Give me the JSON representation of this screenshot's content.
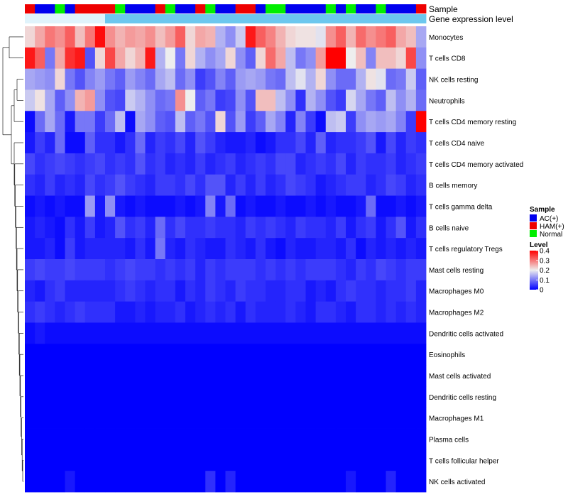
{
  "chart_data": {
    "type": "heatmap",
    "title": "",
    "annotation_tracks": [
      {
        "name": "Sample",
        "label": "Sample"
      },
      {
        "name": "Gene expression level",
        "label": "Gene expression level"
      }
    ],
    "sample_groups": [
      "H",
      "A",
      "A",
      "N",
      "A",
      "H",
      "H",
      "H",
      "H",
      "N",
      "A",
      "A",
      "A",
      "H",
      "N",
      "A",
      "A",
      "H",
      "N",
      "A",
      "A",
      "H",
      "H",
      "A",
      "N",
      "N",
      "A",
      "A",
      "A",
      "A",
      "N",
      "A",
      "N",
      "A",
      "A",
      "N",
      "A",
      "A",
      "A",
      "H"
    ],
    "gene_expression_level": [
      "low",
      "low",
      "low",
      "low",
      "low",
      "low",
      "low",
      "low",
      "high",
      "high",
      "high",
      "high",
      "high",
      "high",
      "high",
      "high",
      "high",
      "high",
      "high",
      "high",
      "high",
      "high",
      "high",
      "high",
      "high",
      "high",
      "high",
      "high",
      "high",
      "high",
      "high",
      "high",
      "high",
      "high",
      "high",
      "high",
      "high",
      "high",
      "high",
      "high"
    ],
    "rows": [
      "Monocytes",
      "T cells CD8",
      "NK cells resting",
      "Neutrophils",
      "T cells CD4 memory resting",
      "T cells CD4 naive",
      "T cells CD4 memory activated",
      "B cells memory",
      "T cells gamma delta",
      "B cells naive",
      "T cells regulatory  Tregs",
      "Mast cells resting",
      "Macrophages M0",
      "Macrophages M2",
      "Dendritic cells activated",
      "Eosinophils",
      "Mast cells activated",
      "Dendritic cells resting",
      "Macrophages M1",
      "Plasma cells",
      "T cells follicular helper",
      "NK cells activated"
    ],
    "values": [
      [
        0.22,
        0.26,
        0.3,
        0.28,
        0.32,
        0.24,
        0.3,
        0.39,
        0.28,
        0.25,
        0.27,
        0.26,
        0.28,
        0.24,
        0.27,
        0.32,
        0.22,
        0.26,
        0.25,
        0.15,
        0.12,
        0.17,
        0.38,
        0.32,
        0.29,
        0.25,
        0.22,
        0.21,
        0.21,
        0.19,
        0.28,
        0.32,
        0.25,
        0.31,
        0.28,
        0.3,
        0.32,
        0.26,
        0.24,
        0.14
      ],
      [
        0.38,
        0.32,
        0.1,
        0.26,
        0.36,
        0.38,
        0.07,
        0.22,
        0.34,
        0.26,
        0.22,
        0.25,
        0.38,
        0.15,
        0.2,
        0.1,
        0.22,
        0.15,
        0.12,
        0.14,
        0.22,
        0.12,
        0.08,
        0.22,
        0.31,
        0.26,
        0.16,
        0.1,
        0.12,
        0.27,
        0.4,
        0.4,
        0.2,
        0.24,
        0.11,
        0.24,
        0.24,
        0.22,
        0.34,
        0.12
      ],
      [
        0.14,
        0.13,
        0.12,
        0.22,
        0.1,
        0.07,
        0.11,
        0.13,
        0.1,
        0.08,
        0.13,
        0.11,
        0.09,
        0.14,
        0.16,
        0.09,
        0.12,
        0.05,
        0.07,
        0.11,
        0.08,
        0.13,
        0.14,
        0.13,
        0.1,
        0.09,
        0.16,
        0.19,
        0.15,
        0.22,
        0.12,
        0.09,
        0.09,
        0.15,
        0.21,
        0.19,
        0.09,
        0.1,
        0.17,
        0.08
      ],
      [
        0.17,
        0.21,
        0.14,
        0.08,
        0.12,
        0.25,
        0.27,
        0.12,
        0.07,
        0.06,
        0.17,
        0.15,
        0.12,
        0.09,
        0.1,
        0.28,
        0.2,
        0.08,
        0.1,
        0.05,
        0.06,
        0.12,
        0.07,
        0.24,
        0.24,
        0.16,
        0.12,
        0.04,
        0.15,
        0.12,
        0.07,
        0.05,
        0.18,
        0.14,
        0.1,
        0.08,
        0.16,
        0.12,
        0.15,
        0.09
      ],
      [
        0.01,
        0.09,
        0.14,
        0.09,
        0.02,
        0.1,
        0.1,
        0.05,
        0.09,
        0.16,
        0.01,
        0.14,
        0.12,
        0.08,
        0.07,
        0.16,
        0.08,
        0.1,
        0.07,
        0.22,
        0.07,
        0.13,
        0.05,
        0.08,
        0.14,
        0.11,
        0.03,
        0.11,
        0.05,
        0.01,
        0.16,
        0.17,
        0.05,
        0.12,
        0.14,
        0.13,
        0.14,
        0.11,
        0.05,
        0.4
      ],
      [
        0.02,
        0.05,
        0.03,
        0.09,
        0.01,
        0.01,
        0.08,
        0.04,
        0.04,
        0.02,
        0.04,
        0.09,
        0.03,
        0.05,
        0.04,
        0.06,
        0.03,
        0.07,
        0.05,
        0.03,
        0.02,
        0.02,
        0.03,
        0.01,
        0.02,
        0.04,
        0.04,
        0.06,
        0.03,
        0.08,
        0.03,
        0.04,
        0.04,
        0.05,
        0.07,
        0.02,
        0.06,
        0.03,
        0.05,
        0.04
      ],
      [
        0.06,
        0.04,
        0.05,
        0.06,
        0.05,
        0.04,
        0.05,
        0.06,
        0.04,
        0.05,
        0.04,
        0.07,
        0.04,
        0.05,
        0.03,
        0.04,
        0.03,
        0.05,
        0.03,
        0.04,
        0.05,
        0.03,
        0.04,
        0.05,
        0.04,
        0.06,
        0.06,
        0.03,
        0.04,
        0.05,
        0.04,
        0.06,
        0.03,
        0.05,
        0.04,
        0.04,
        0.05,
        0.03,
        0.04,
        0.05
      ],
      [
        0.04,
        0.03,
        0.05,
        0.03,
        0.04,
        0.03,
        0.06,
        0.04,
        0.05,
        0.07,
        0.05,
        0.04,
        0.03,
        0.05,
        0.05,
        0.04,
        0.06,
        0.04,
        0.07,
        0.07,
        0.03,
        0.05,
        0.03,
        0.05,
        0.03,
        0.04,
        0.06,
        0.05,
        0.04,
        0.02,
        0.03,
        0.04,
        0.05,
        0.05,
        0.03,
        0.04,
        0.06,
        0.05,
        0.03,
        0.04
      ],
      [
        0.01,
        0.02,
        0.01,
        0.02,
        0.01,
        0.01,
        0.13,
        0.02,
        0.12,
        0.02,
        0.01,
        0.02,
        0.01,
        0.01,
        0.01,
        0.02,
        0.01,
        0.02,
        0.11,
        0.02,
        0.09,
        0.01,
        0.02,
        0.01,
        0.01,
        0.02,
        0.01,
        0.01,
        0.02,
        0.01,
        0.02,
        0.01,
        0.01,
        0.02,
        0.09,
        0.01,
        0.01,
        0.02,
        0.01,
        0.02
      ],
      [
        0.02,
        0.03,
        0.02,
        0.01,
        0.04,
        0.02,
        0.05,
        0.02,
        0.03,
        0.07,
        0.04,
        0.05,
        0.03,
        0.09,
        0.04,
        0.06,
        0.04,
        0.04,
        0.05,
        0.04,
        0.04,
        0.03,
        0.05,
        0.04,
        0.05,
        0.04,
        0.03,
        0.05,
        0.04,
        0.04,
        0.03,
        0.05,
        0.02,
        0.04,
        0.05,
        0.02,
        0.04,
        0.07,
        0.02,
        0.04
      ],
      [
        0.02,
        0.02,
        0.03,
        0.01,
        0.05,
        0.02,
        0.03,
        0.03,
        0.03,
        0.03,
        0.02,
        0.04,
        0.02,
        0.1,
        0.03,
        0.02,
        0.04,
        0.03,
        0.02,
        0.02,
        0.04,
        0.03,
        0.02,
        0.04,
        0.02,
        0.01,
        0.03,
        0.02,
        0.02,
        0.03,
        0.03,
        0.02,
        0.04,
        0.01,
        0.03,
        0.02,
        0.03,
        0.02,
        0.03,
        0.02
      ],
      [
        0.05,
        0.06,
        0.05,
        0.05,
        0.06,
        0.05,
        0.05,
        0.05,
        0.04,
        0.05,
        0.06,
        0.05,
        0.05,
        0.04,
        0.05,
        0.04,
        0.05,
        0.03,
        0.05,
        0.04,
        0.05,
        0.05,
        0.05,
        0.04,
        0.05,
        0.04,
        0.05,
        0.04,
        0.05,
        0.05,
        0.05,
        0.04,
        0.03,
        0.05,
        0.04,
        0.06,
        0.05,
        0.04,
        0.05,
        0.05
      ],
      [
        0.03,
        0.02,
        0.04,
        0.05,
        0.03,
        0.03,
        0.03,
        0.03,
        0.03,
        0.04,
        0.05,
        0.04,
        0.03,
        0.04,
        0.04,
        0.02,
        0.04,
        0.03,
        0.05,
        0.04,
        0.03,
        0.05,
        0.04,
        0.04,
        0.03,
        0.03,
        0.04,
        0.04,
        0.02,
        0.03,
        0.02,
        0.04,
        0.05,
        0.04,
        0.04,
        0.03,
        0.04,
        0.04,
        0.05,
        0.03
      ],
      [
        0.04,
        0.05,
        0.04,
        0.03,
        0.04,
        0.05,
        0.04,
        0.04,
        0.04,
        0.02,
        0.02,
        0.03,
        0.02,
        0.03,
        0.03,
        0.04,
        0.02,
        0.03,
        0.04,
        0.03,
        0.04,
        0.02,
        0.04,
        0.03,
        0.03,
        0.03,
        0.04,
        0.03,
        0.02,
        0.04,
        0.04,
        0.03,
        0.02,
        0.04,
        0.04,
        0.03,
        0.04,
        0.03,
        0.04,
        0.03
      ],
      [
        0.01,
        0.02,
        0.01,
        0.01,
        0.01,
        0.01,
        0.01,
        0.01,
        0.01,
        0.01,
        0.01,
        0.01,
        0.01,
        0.01,
        0.01,
        0.01,
        0.01,
        0.01,
        0.01,
        0.01,
        0.01,
        0.01,
        0.01,
        0.01,
        0.01,
        0.01,
        0.01,
        0.01,
        0.01,
        0.01,
        0.01,
        0.01,
        0.01,
        0.01,
        0.01,
        0.01,
        0.01,
        0.01,
        0.01,
        0.01
      ],
      [
        0,
        0,
        0,
        0,
        0,
        0,
        0,
        0,
        0,
        0,
        0,
        0,
        0,
        0,
        0,
        0,
        0,
        0,
        0,
        0,
        0,
        0,
        0,
        0,
        0,
        0,
        0,
        0,
        0,
        0,
        0,
        0,
        0,
        0,
        0,
        0,
        0,
        0,
        0,
        0
      ],
      [
        0,
        0,
        0,
        0,
        0,
        0,
        0,
        0,
        0,
        0,
        0,
        0,
        0,
        0,
        0,
        0,
        0,
        0,
        0,
        0,
        0,
        0,
        0,
        0,
        0,
        0,
        0,
        0,
        0,
        0,
        0,
        0,
        0,
        0,
        0,
        0,
        0,
        0,
        0,
        0
      ],
      [
        0,
        0,
        0,
        0,
        0,
        0,
        0,
        0,
        0,
        0,
        0,
        0,
        0,
        0,
        0,
        0,
        0,
        0,
        0,
        0,
        0,
        0,
        0,
        0,
        0,
        0,
        0,
        0,
        0,
        0,
        0,
        0,
        0,
        0,
        0,
        0,
        0,
        0,
        0,
        0
      ],
      [
        0,
        0,
        0,
        0,
        0,
        0,
        0,
        0,
        0,
        0,
        0,
        0,
        0,
        0,
        0,
        0,
        0,
        0,
        0,
        0,
        0,
        0,
        0,
        0,
        0,
        0,
        0,
        0,
        0,
        0,
        0,
        0,
        0,
        0,
        0,
        0,
        0,
        0,
        0,
        0
      ],
      [
        0,
        0,
        0,
        0,
        0,
        0,
        0,
        0,
        0,
        0,
        0,
        0,
        0,
        0,
        0,
        0,
        0,
        0,
        0,
        0,
        0,
        0,
        0,
        0,
        0,
        0,
        0,
        0,
        0,
        0,
        0,
        0,
        0,
        0,
        0,
        0,
        0,
        0,
        0,
        0
      ],
      [
        0,
        0,
        0,
        0,
        0,
        0,
        0,
        0,
        0,
        0,
        0,
        0,
        0,
        0,
        0,
        0,
        0,
        0,
        0,
        0,
        0,
        0,
        0,
        0,
        0,
        0,
        0,
        0,
        0,
        0,
        0,
        0,
        0,
        0,
        0,
        0,
        0,
        0,
        0,
        0
      ],
      [
        0,
        0,
        0,
        0,
        0.02,
        0,
        0,
        0,
        0,
        0,
        0,
        0,
        0,
        0,
        0,
        0,
        0,
        0,
        0.04,
        0,
        0.03,
        0,
        0,
        0,
        0,
        0,
        0,
        0,
        0,
        0,
        0,
        0,
        0.02,
        0,
        0,
        0,
        0.03,
        0,
        0,
        0
      ]
    ],
    "legend_sample": {
      "title": "Sample",
      "entries": [
        {
          "key": "A",
          "label": "AC(+)",
          "color": "#0000ee"
        },
        {
          "key": "H",
          "label": "HAM(+)",
          "color": "#ee0000"
        },
        {
          "key": "N",
          "label": "Normal",
          "color": "#00ee00"
        }
      ]
    },
    "legend_level": {
      "title": "Level",
      "ticks": [
        "0.4",
        "0.3",
        "0.2",
        "0.1",
        "0"
      ],
      "tick_values": [
        0.4,
        0.3,
        0.2,
        0.1,
        0
      ],
      "range": [
        0,
        0.4
      ],
      "colors": {
        "low": "#0000ff",
        "mid": "#eeeeee",
        "high": "#ff0000"
      }
    },
    "gene_level_colors": {
      "low": "#e0f3fb",
      "high": "#6cc7ee"
    }
  }
}
